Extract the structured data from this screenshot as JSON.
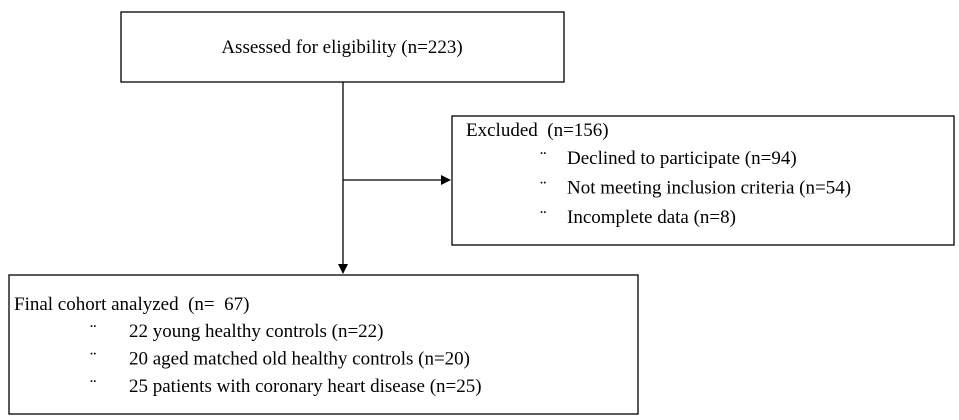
{
  "nodes": [
    {
      "title": "Assessed for eligibility (n=223)"
    },
    {
      "title": "Excluded  (n=156)",
      "bullet": "¨",
      "items": [
        "Declined to participate (n=94)",
        "Not meeting inclusion criteria (n=54)",
        "Incomplete data (n=8)"
      ]
    },
    {
      "title": "Final cohort analyzed  (n=  67)",
      "bullet": "¨",
      "items": [
        "22 young healthy controls (n=22)",
        "20 aged matched old healthy controls (n=20)",
        "25 patients with coronary heart disease (n=25)"
      ]
    }
  ]
}
